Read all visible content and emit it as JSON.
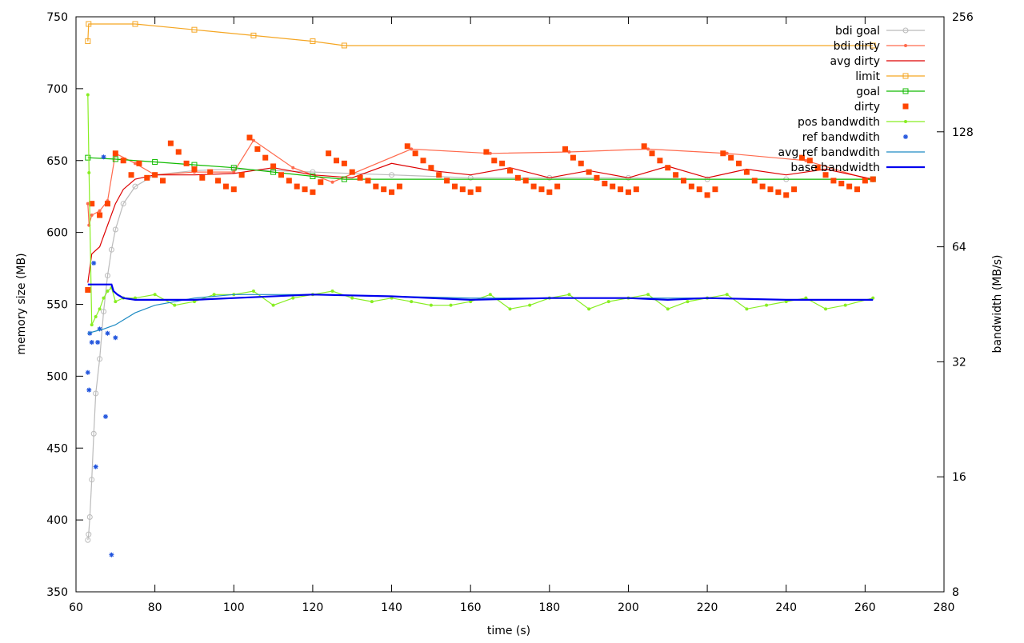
{
  "chart_data": {
    "type": "line",
    "xlabel": "time (s)",
    "ylabel_left": "memory size (MB)",
    "ylabel_right": "bandwidth (MB/s)",
    "x_range": [
      60,
      280
    ],
    "x_ticks": [
      60,
      80,
      100,
      120,
      140,
      160,
      180,
      200,
      220,
      240,
      260,
      280
    ],
    "y_left_range": [
      350,
      750
    ],
    "y_left_ticks": [
      350,
      400,
      450,
      500,
      550,
      600,
      650,
      700,
      750
    ],
    "y_right_scale": "log2",
    "y_right_range": [
      8,
      256
    ],
    "y_right_ticks": [
      8,
      16,
      32,
      64,
      128,
      256
    ],
    "grid": false,
    "legend_position": "top-right",
    "series": [
      {
        "name": "bdi goal",
        "axis": "left",
        "color": "#bbbbbb",
        "style": "line-circle",
        "x": [
          63,
          63.2,
          63.5,
          64,
          64.5,
          65,
          66,
          67,
          68,
          69,
          70,
          72,
          75,
          80,
          90,
          100,
          120,
          140,
          160,
          180,
          200,
          220,
          240,
          262
        ],
        "y": [
          386,
          390,
          402,
          428,
          460,
          488,
          512,
          545,
          570,
          588,
          602,
          620,
          632,
          640,
          643,
          644,
          642,
          640,
          638,
          638,
          638,
          637,
          637,
          637
        ]
      },
      {
        "name": "bdi dirty",
        "axis": "left",
        "color": "#ff6a4d",
        "style": "line-point",
        "x": [
          63,
          63.3,
          64,
          66,
          68,
          70,
          75,
          80,
          90,
          100,
          105,
          115,
          125,
          145,
          165,
          185,
          205,
          225,
          245,
          262
        ],
        "y": [
          620,
          605,
          612,
          615,
          622,
          655,
          648,
          640,
          642,
          642,
          664,
          645,
          635,
          658,
          655,
          656,
          658,
          655,
          650,
          636
        ]
      },
      {
        "name": "avg dirty",
        "axis": "left",
        "color": "#dd0000",
        "style": "line",
        "x": [
          63,
          64,
          66,
          68,
          70,
          72,
          75,
          80,
          90,
          100,
          110,
          120,
          130,
          140,
          150,
          160,
          170,
          180,
          190,
          200,
          210,
          220,
          230,
          240,
          250,
          262
        ],
        "y": [
          565,
          585,
          590,
          605,
          620,
          630,
          637,
          640,
          640,
          641,
          645,
          640,
          638,
          648,
          643,
          640,
          645,
          638,
          643,
          638,
          646,
          638,
          644,
          640,
          644,
          637
        ]
      },
      {
        "name": "limit",
        "axis": "left",
        "color": "#f5a623",
        "style": "line-square",
        "x": [
          63,
          63.2,
          75,
          90,
          105,
          120,
          128,
          262
        ],
        "y": [
          733,
          745,
          745,
          741,
          737,
          733,
          730,
          730
        ]
      },
      {
        "name": "goal",
        "axis": "left",
        "color": "#11bb00",
        "style": "line-square",
        "x": [
          63,
          70,
          80,
          90,
          100,
          110,
          120,
          128,
          262
        ],
        "y": [
          652,
          651,
          649,
          647,
          645,
          642,
          639,
          637,
          637
        ]
      },
      {
        "name": "dirty",
        "axis": "left",
        "color": "#ff4500",
        "style": "square",
        "x": [
          63,
          64,
          66,
          68,
          70,
          72,
          74,
          76,
          78,
          80,
          82,
          84,
          86,
          88,
          90,
          92,
          94,
          96,
          98,
          100,
          102,
          104,
          106,
          108,
          110,
          112,
          114,
          116,
          118,
          120,
          122,
          124,
          126,
          128,
          130,
          132,
          134,
          136,
          138,
          140,
          142,
          144,
          146,
          148,
          150,
          152,
          154,
          156,
          158,
          160,
          162,
          164,
          166,
          168,
          170,
          172,
          174,
          176,
          178,
          180,
          182,
          184,
          186,
          188,
          190,
          192,
          194,
          196,
          198,
          200,
          202,
          204,
          206,
          208,
          210,
          212,
          214,
          216,
          218,
          220,
          222,
          224,
          226,
          228,
          230,
          232,
          234,
          236,
          238,
          240,
          242,
          244,
          246,
          248,
          250,
          252,
          254,
          256,
          258,
          260,
          262
        ],
        "y": [
          560,
          620,
          612,
          620,
          655,
          650,
          640,
          648,
          638,
          640,
          636,
          662,
          656,
          648,
          644,
          638,
          642,
          636,
          632,
          630,
          640,
          666,
          658,
          652,
          646,
          640,
          636,
          632,
          630,
          628,
          635,
          655,
          650,
          648,
          642,
          638,
          636,
          632,
          630,
          628,
          632,
          660,
          655,
          650,
          645,
          640,
          636,
          632,
          630,
          628,
          630,
          656,
          650,
          648,
          643,
          638,
          636,
          632,
          630,
          628,
          632,
          658,
          652,
          648,
          642,
          638,
          634,
          632,
          630,
          628,
          630,
          660,
          655,
          650,
          645,
          640,
          636,
          632,
          630,
          626,
          630,
          655,
          652,
          648,
          642,
          636,
          632,
          630,
          628,
          626,
          630,
          652,
          650,
          645,
          640,
          636,
          634,
          632,
          630,
          636,
          637
        ]
      },
      {
        "name": "pos bandwdith",
        "axis": "right",
        "color": "#88ee22",
        "style": "line-point",
        "x": [
          63,
          63.3,
          64,
          65,
          66,
          67,
          68,
          69,
          70,
          72,
          75,
          80,
          85,
          90,
          95,
          100,
          105,
          110,
          115,
          120,
          125,
          130,
          135,
          140,
          145,
          150,
          155,
          160,
          165,
          170,
          175,
          180,
          185,
          190,
          195,
          200,
          205,
          210,
          215,
          220,
          225,
          230,
          235,
          240,
          245,
          250,
          255,
          262
        ],
        "y": [
          160,
          100,
          40,
          42,
          44,
          47,
          49,
          50,
          46,
          47,
          47,
          48,
          45,
          46,
          48,
          48,
          49,
          45,
          47,
          48,
          49,
          47,
          46,
          47,
          46,
          45,
          45,
          46,
          48,
          44,
          45,
          47,
          48,
          44,
          46,
          47,
          48,
          44,
          46,
          47,
          48,
          44,
          45,
          46,
          47,
          44,
          45,
          47
        ]
      },
      {
        "name": "ref bandwdith",
        "axis": "right",
        "color": "#2255dd",
        "style": "star",
        "x": [
          63,
          63.3,
          63.5,
          64,
          64.5,
          65,
          65.5,
          66,
          67,
          67.5,
          68,
          69,
          70
        ],
        "y": [
          30,
          27,
          38,
          36,
          58,
          17,
          36,
          39,
          110,
          23,
          38,
          10,
          37
        ]
      },
      {
        "name": "avg ref bandwdith",
        "axis": "right",
        "color": "#1e8bc3",
        "style": "line",
        "x": [
          63,
          65,
          67,
          70,
          75,
          80,
          90,
          100,
          120,
          140,
          160,
          180,
          200,
          220,
          240,
          262
        ],
        "y": [
          38,
          38.5,
          39,
          40,
          43,
          45,
          47,
          48,
          48,
          47.5,
          47,
          47,
          47,
          47,
          46.5,
          46.5
        ]
      },
      {
        "name": "base bandwidth",
        "axis": "right",
        "color": "#0000ee",
        "style": "line",
        "x": [
          63,
          69,
          69.5,
          70.5,
          72,
          75,
          90,
          100,
          120,
          140,
          160,
          180,
          200,
          210,
          220,
          240,
          262
        ],
        "y": [
          51,
          51,
          49,
          48,
          47,
          46.5,
          46.5,
          47,
          48,
          47.5,
          46.5,
          47,
          47,
          46.5,
          47,
          46.5,
          46.5
        ]
      }
    ]
  }
}
